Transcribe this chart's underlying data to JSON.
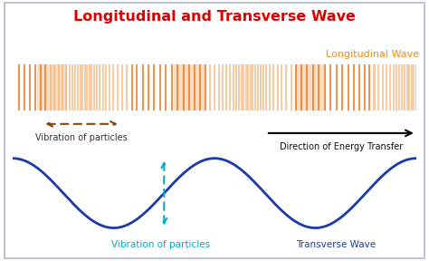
{
  "title": "Longitudinal and Transverse Wave",
  "title_color": "#dd0000",
  "title_fontsize": 11.5,
  "bg_color": "#ffffff",
  "border_color": "#b0b8cc",
  "long_wave_label": "Longitudinal Wave",
  "long_wave_label_color": "#ff8800",
  "vib_label_long": "Vibration of particles",
  "energy_label": "Direction of Energy Transfer",
  "vib_label_trans": "Vibration of particles",
  "vib_label_trans_color": "#00aacc",
  "trans_wave_label": "Transverse Wave",
  "trans_wave_label_color": "#1a3aaa",
  "bar_light_color": "#f5b070",
  "bar_dark_color": "#f08030",
  "compression_fill_color": "#f5a050",
  "wave_color": "#1a3aaa",
  "dashed_arrow_color": "#00aacc",
  "brown_arrow_color": "#884400"
}
